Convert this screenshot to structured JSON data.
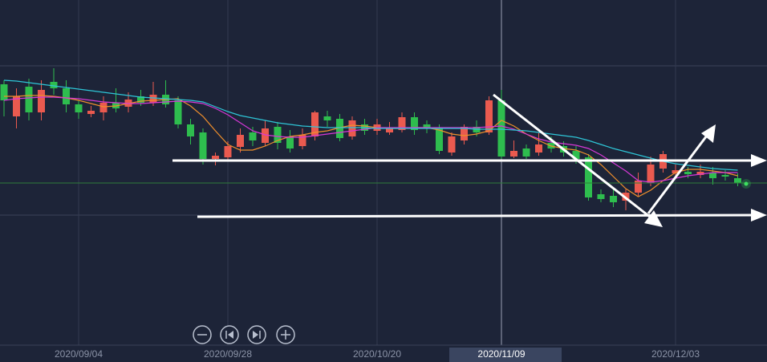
{
  "chart_data": {
    "type": "candlestick",
    "categories": [
      null,
      null,
      null,
      null,
      null,
      null,
      "2020/09/04",
      null,
      null,
      null,
      null,
      null,
      null,
      null,
      null,
      null,
      null,
      null,
      "2020/09/28",
      null,
      null,
      null,
      null,
      null,
      null,
      null,
      null,
      null,
      null,
      null,
      "2020/10/20",
      null,
      null,
      null,
      null,
      null,
      null,
      null,
      null,
      null,
      "2020/11/09",
      null,
      null,
      null,
      null,
      null,
      null,
      null,
      null,
      null,
      null,
      null,
      null,
      null,
      "2020/12/03",
      null,
      null,
      null,
      null,
      null
    ],
    "open": [
      320,
      280,
      317,
      285,
      323,
      315,
      295,
      283,
      285,
      297,
      292,
      305,
      297,
      307,
      300,
      270,
      260,
      227,
      229,
      242,
      260,
      247,
      267,
      255,
      243,
      255,
      280,
      277,
      255,
      270,
      262,
      260,
      263,
      279,
      270,
      265,
      235,
      250,
      267,
      260,
      300,
      230,
      240,
      235,
      247,
      243,
      237,
      229,
      183,
      181,
      175,
      185,
      197,
      215,
      209,
      211,
      207,
      210,
      207,
      203
    ],
    "high": [
      325,
      315,
      327,
      325,
      340,
      325,
      300,
      293,
      305,
      315,
      310,
      313,
      323,
      325,
      305,
      277,
      265,
      235,
      249,
      265,
      267,
      275,
      273,
      263,
      265,
      287,
      287,
      283,
      280,
      277,
      277,
      273,
      285,
      285,
      275,
      270,
      260,
      270,
      275,
      305,
      313,
      250,
      245,
      260,
      255,
      249,
      243,
      233,
      189,
      189,
      189,
      210,
      230,
      237,
      220,
      217,
      220,
      217,
      213,
      209
    ],
    "low": [
      280,
      265,
      275,
      275,
      307,
      285,
      277,
      279,
      275,
      285,
      285,
      293,
      293,
      291,
      265,
      245,
      220,
      219,
      225,
      235,
      243,
      243,
      239,
      235,
      239,
      250,
      267,
      249,
      251,
      257,
      257,
      257,
      260,
      257,
      259,
      233,
      231,
      245,
      255,
      257,
      227,
      228,
      227,
      231,
      235,
      230,
      221,
      175,
      173,
      167,
      163,
      181,
      193,
      210,
      203,
      203,
      203,
      195,
      200,
      193
    ],
    "close": [
      300,
      305,
      285,
      313,
      315,
      295,
      285,
      287,
      297,
      290,
      301,
      297,
      307,
      295,
      270,
      255,
      227,
      231,
      243,
      257,
      250,
      265,
      247,
      240,
      257,
      285,
      275,
      253,
      275,
      262,
      270,
      265,
      279,
      263,
      265,
      237,
      255,
      267,
      260,
      300,
      230,
      237,
      230,
      245,
      240,
      235,
      227,
      179,
      177,
      173,
      185,
      200,
      220,
      233,
      213,
      208,
      211,
      203,
      205,
      197
    ],
    "up_color": "#ea5a4f",
    "down_color": "#2ebd4e",
    "series": [
      {
        "color": "#f0902c",
        "values": [
          305,
          305,
          306,
          306,
          305,
          303,
          300,
          296,
          292,
          293,
          296,
          299,
          300,
          301,
          302,
          293,
          280,
          262,
          245,
          238,
          238,
          243,
          250,
          255,
          257,
          260,
          262,
          266,
          269,
          268,
          266,
          265,
          265,
          266,
          266,
          263,
          258,
          256,
          258,
          262,
          275,
          268,
          258,
          250,
          243,
          240,
          238,
          232,
          220,
          205,
          190,
          180,
          188,
          200,
          210,
          214,
          214,
          212,
          210,
          206
        ]
      },
      {
        "color": "#d638d6",
        "values": [
          300,
          302,
          303,
          304,
          304,
          303,
          302,
          300,
          298,
          297,
          296,
          296,
          297,
          298,
          299,
          298,
          296,
          290,
          282,
          272,
          262,
          257,
          255,
          254,
          254,
          256,
          258,
          260,
          262,
          264,
          266,
          266,
          266,
          266,
          266,
          266,
          266,
          266,
          266,
          267,
          268,
          264,
          258,
          252,
          248,
          246,
          244,
          240,
          232,
          222,
          212,
          200,
          198,
          200,
          203,
          206,
          208,
          210,
          210,
          210
        ]
      },
      {
        "color": "#2ec5d6",
        "values": [
          325,
          324,
          322,
          320,
          318,
          316,
          314,
          312,
          310,
          308,
          306,
          304,
          303,
          302,
          301,
          300,
          298,
          292,
          286,
          281,
          278,
          275,
          272,
          270,
          268,
          267,
          266,
          266,
          266,
          266,
          265,
          265,
          265,
          265,
          265,
          265,
          265,
          265,
          264,
          264,
          264,
          263,
          262,
          260,
          258,
          256,
          254,
          250,
          245,
          240,
          236,
          232,
          228,
          224,
          221,
          219,
          217,
          215,
          214,
          213
        ]
      }
    ],
    "ylim": [
      0,
      425
    ],
    "crosshair_index": 40
  }
}
